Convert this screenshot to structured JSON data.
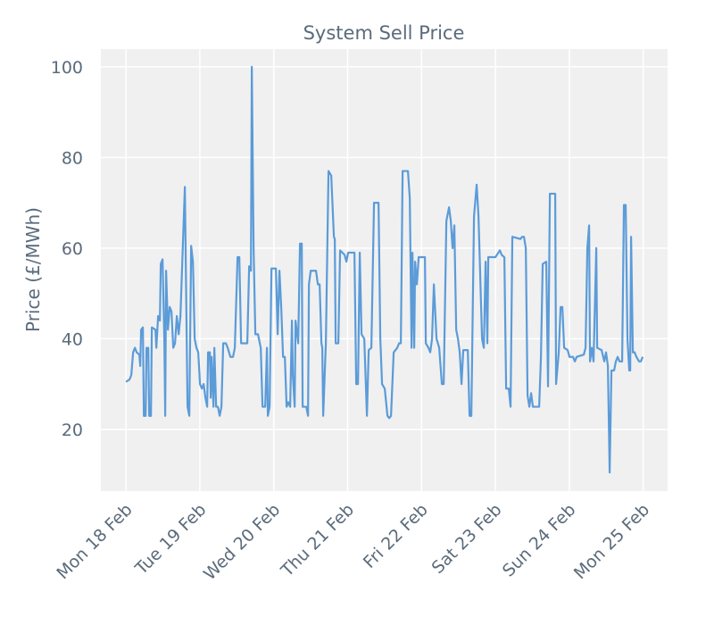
{
  "chart_data": {
    "type": "line",
    "title": "System Sell Price",
    "ylabel": "Price (£/MWh)",
    "color": "#5b9bd8",
    "grid": true,
    "xlim": [
      -0.34,
      7.33
    ],
    "ylim": [
      6.4,
      103.9
    ],
    "yticks": [
      20,
      40,
      60,
      80,
      100
    ],
    "xticks": [
      {
        "value": 0,
        "label": "Mon 18 Feb"
      },
      {
        "value": 1,
        "label": "Tue 19 Feb"
      },
      {
        "value": 2,
        "label": "Wed 20 Feb"
      },
      {
        "value": 3,
        "label": "Thu 21 Feb"
      },
      {
        "value": 4,
        "label": "Fri 22 Feb"
      },
      {
        "value": 5,
        "label": "Sat 23 Feb"
      },
      {
        "value": 6,
        "label": "Sun 24 Feb"
      },
      {
        "value": 7,
        "label": "Mon 25 Feb"
      }
    ],
    "x": [
      0,
      0.048,
      0.072,
      0.097,
      0.121,
      0.145,
      0.181,
      0.193,
      0.205,
      0.229,
      0.242,
      0.266,
      0.278,
      0.302,
      0.314,
      0.338,
      0.35,
      0.399,
      0.411,
      0.435,
      0.459,
      0.471,
      0.495,
      0.519,
      0.531,
      0.543,
      0.568,
      0.592,
      0.616,
      0.64,
      0.664,
      0.688,
      0.713,
      0.737,
      0.797,
      0.833,
      0.857,
      0.882,
      0.906,
      0.93,
      0.954,
      0.978,
      1.002,
      1.027,
      1.051,
      1.075,
      1.099,
      1.111,
      1.135,
      1.147,
      1.159,
      1.184,
      1.196,
      1.22,
      1.244,
      1.268,
      1.292,
      1.316,
      1.353,
      1.377,
      1.413,
      1.449,
      1.473,
      1.51,
      1.534,
      1.558,
      1.606,
      1.642,
      1.667,
      1.691,
      1.703,
      1.727,
      1.751,
      1.787,
      1.824,
      1.848,
      1.884,
      1.908,
      1.92,
      1.944,
      1.969,
      2.029,
      2.053,
      2.077,
      2.101,
      2.126,
      2.15,
      2.174,
      2.198,
      2.222,
      2.246,
      2.258,
      2.283,
      2.295,
      2.331,
      2.355,
      2.379,
      2.391,
      2.44,
      2.464,
      2.476,
      2.5,
      2.572,
      2.597,
      2.621,
      2.645,
      2.657,
      2.669,
      2.705,
      2.741,
      2.778,
      2.814,
      2.826,
      2.838,
      2.874,
      2.898,
      2.959,
      2.983,
      3.007,
      3.092,
      3.116,
      3.14,
      3.164,
      3.188,
      3.225,
      3.261,
      3.285,
      3.321,
      3.357,
      3.418,
      3.442,
      3.466,
      3.502,
      3.539,
      3.563,
      3.587,
      3.623,
      3.671,
      3.696,
      3.72,
      3.744,
      3.816,
      3.841,
      3.865,
      3.877,
      3.901,
      3.913,
      3.937,
      3.961,
      4.046,
      4.058,
      4.094,
      4.118,
      4.142,
      4.167,
      4.203,
      4.239,
      4.275,
      4.3,
      4.336,
      4.372,
      4.396,
      4.42,
      4.444,
      4.469,
      4.493,
      4.517,
      4.541,
      4.565,
      4.626,
      4.65,
      4.674,
      4.71,
      4.746,
      4.771,
      4.819,
      4.843,
      4.867,
      4.891,
      4.903,
      4.964,
      5,
      5.06,
      5.085,
      5.121,
      5.145,
      5.181,
      5.205,
      5.229,
      5.338,
      5.362,
      5.386,
      5.411,
      5.435,
      5.459,
      5.483,
      5.507,
      5.592,
      5.616,
      5.64,
      5.688,
      5.712,
      5.737,
      5.809,
      5.821,
      5.857,
      5.882,
      5.906,
      5.93,
      5.978,
      6.002,
      6.051,
      6.075,
      6.099,
      6.196,
      6.22,
      6.244,
      6.268,
      6.28,
      6.304,
      6.328,
      6.365,
      6.377,
      6.437,
      6.473,
      6.497,
      6.522,
      6.546,
      6.57,
      6.606,
      6.63,
      6.654,
      6.679,
      6.715,
      6.739,
      6.763,
      6.787,
      6.811,
      6.824,
      6.836,
      6.86,
      6.884,
      6.908,
      6.944,
      6.968,
      6.993
    ],
    "values": [
      30.5,
      31,
      32,
      37,
      38,
      37,
      36.5,
      34,
      42,
      42.5,
      23,
      23,
      38,
      38,
      23,
      23,
      42.5,
      42,
      38,
      45,
      44,
      56.5,
      57.5,
      40,
      23,
      55,
      42,
      47,
      46,
      38,
      39,
      45,
      41,
      45,
      73.5,
      25,
      23,
      60.5,
      57,
      40,
      38,
      37,
      30,
      29,
      30,
      27,
      25,
      37,
      37,
      27,
      36,
      25,
      38,
      25,
      25,
      23,
      25,
      39,
      39,
      38,
      36,
      36,
      38,
      58,
      58,
      39,
      39,
      39,
      56,
      55,
      100,
      60,
      41,
      41,
      38,
      25,
      25,
      38,
      23,
      25,
      55.5,
      55.5,
      41,
      55,
      47,
      36,
      36,
      25,
      26,
      25,
      44,
      32,
      25,
      44,
      39,
      61,
      61,
      25,
      25,
      23,
      52,
      55,
      55,
      52,
      52,
      39,
      38,
      23,
      39,
      77,
      76,
      62.5,
      62,
      39,
      39,
      59.5,
      58.5,
      57,
      59,
      59,
      30,
      30,
      59,
      41,
      40,
      23,
      37.5,
      38,
      70,
      70,
      40,
      30,
      29,
      23,
      22.5,
      23,
      37,
      38,
      39,
      39,
      77,
      77,
      71,
      38,
      59,
      38,
      57,
      52,
      58,
      58,
      39,
      38,
      37,
      40,
      52,
      40,
      38,
      30,
      30,
      66,
      69,
      66,
      60,
      65,
      42,
      40,
      37,
      30,
      37.5,
      37.5,
      23,
      23,
      67,
      74,
      67,
      40,
      38,
      57,
      39,
      58,
      58,
      58,
      59.5,
      58.5,
      58,
      29,
      29,
      25,
      62.5,
      62,
      62.5,
      62.5,
      60,
      27.5,
      25,
      28,
      25,
      25,
      36,
      56.5,
      57,
      29.5,
      72,
      72,
      30,
      37,
      47,
      47,
      38,
      37.5,
      36,
      36,
      35,
      36,
      36.5,
      38,
      60,
      65,
      35,
      38,
      35,
      60,
      38,
      37.5,
      35,
      37,
      34,
      10.5,
      33,
      33,
      35,
      36,
      35,
      35,
      69.5,
      69.5,
      40,
      33,
      33,
      62.5,
      37,
      37,
      36,
      35,
      35,
      36
    ]
  }
}
